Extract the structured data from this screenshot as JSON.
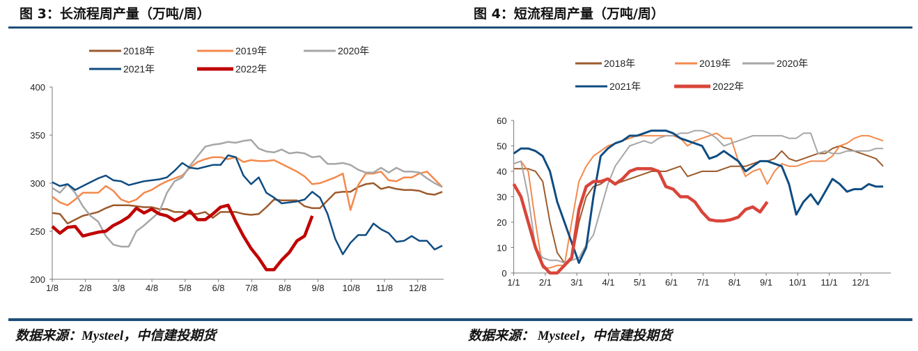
{
  "header": {
    "left_title": "图 3：长流程周产量（万吨/周）",
    "right_title": "图 4：短流程周产量（万吨/周）"
  },
  "footer": {
    "left_source": "数据来源：Mysteel，中信建投期货",
    "right_source": "数据来源： Mysteel，中信建投期货"
  },
  "colors": {
    "rule": "#1f4e79",
    "2018": "#9c5a2c",
    "2019": "#f4894b",
    "2020": "#a6a6a6",
    "2021": "#0f4c81",
    "2022_left": "#c00000",
    "2022_right": "#d9453a"
  },
  "chart_data": [
    {
      "type": "line",
      "title": "图 3：长流程周产量（万吨/周）",
      "x_start": "1/8",
      "x_frequency": "weekly",
      "xticks": [
        "1/8",
        "2/8",
        "3/8",
        "4/8",
        "5/8",
        "6/8",
        "7/8",
        "8/8",
        "9/8",
        "10/8",
        "11/8",
        "12/8"
      ],
      "ylim": [
        200,
        400
      ],
      "yticks": [
        200,
        250,
        300,
        350,
        400
      ],
      "grid": false,
      "legend": "top",
      "series": [
        {
          "name": "2018年",
          "color": "#9c5a2c",
          "values": [
            269,
            268,
            258,
            262,
            266,
            268,
            270,
            274,
            277,
            277,
            277,
            276,
            275,
            275,
            273,
            273,
            270,
            270,
            268,
            268,
            270,
            264,
            270,
            270,
            270,
            268,
            267,
            268,
            275,
            283,
            282,
            282,
            282,
            276,
            274,
            274,
            282,
            290,
            291,
            291,
            296,
            299,
            300,
            294,
            296,
            294,
            293,
            293,
            292,
            289,
            288,
            291
          ]
        },
        {
          "name": "2019年",
          "color": "#f4894b",
          "values": [
            286,
            280,
            277,
            283,
            290,
            290,
            290,
            297,
            292,
            283,
            280,
            283,
            290,
            293,
            298,
            302,
            305,
            308,
            316,
            322,
            325,
            327,
            327,
            325,
            327,
            322,
            324,
            323,
            323,
            324,
            320,
            316,
            312,
            307,
            299,
            300,
            303,
            306,
            310,
            272,
            298,
            310,
            310,
            312,
            303,
            302,
            306,
            306,
            310,
            312,
            304,
            296
          ]
        },
        {
          "name": "2020年",
          "color": "#a6a6a6",
          "values": [
            295,
            290,
            299,
            290,
            276,
            266,
            260,
            245,
            236,
            234,
            234,
            250,
            256,
            263,
            270,
            290,
            302,
            306,
            318,
            328,
            338,
            340,
            341,
            343,
            342,
            344,
            345,
            336,
            333,
            332,
            335,
            331,
            332,
            331,
            327,
            328,
            320,
            320,
            321,
            319,
            314,
            311,
            311,
            316,
            311,
            316,
            312,
            312,
            311,
            305,
            300,
            296
          ]
        },
        {
          "name": "2021年",
          "color": "#0f4c81",
          "values": [
            301,
            297,
            299,
            293,
            297,
            301,
            305,
            308,
            303,
            302,
            298,
            300,
            302,
            303,
            304,
            306,
            313,
            321,
            316,
            315,
            317,
            319,
            319,
            329,
            327,
            308,
            299,
            306,
            290,
            285,
            279,
            280,
            281,
            283,
            291,
            285,
            268,
            242,
            226,
            238,
            246,
            246,
            258,
            252,
            248,
            239,
            240,
            245,
            240,
            240,
            231,
            235
          ]
        },
        {
          "name": "2022年",
          "color": "#c00000",
          "values": [
            255,
            248,
            254,
            255,
            245,
            247,
            249,
            250,
            256,
            260,
            265,
            274,
            269,
            273,
            268,
            266,
            261,
            265,
            271,
            262,
            262,
            268,
            275,
            277,
            260,
            245,
            232,
            222,
            210,
            210,
            220,
            228,
            240,
            245,
            266
          ]
        }
      ]
    },
    {
      "type": "line",
      "title": "图 4：短流程周产量（万吨/周）",
      "x_start": "1/1",
      "x_frequency": "weekly",
      "xticks": [
        "1/1",
        "2/1",
        "3/1",
        "4/1",
        "5/1",
        "6/1",
        "7/1",
        "8/1",
        "9/1",
        "10/1",
        "11/1",
        "12/1"
      ],
      "ylim": [
        0,
        60
      ],
      "yticks": [
        0,
        10,
        20,
        30,
        40,
        50,
        60
      ],
      "grid": false,
      "legend": "top",
      "series": [
        {
          "name": "2018年",
          "color": "#9c5a2c",
          "values": [
            41,
            41,
            41,
            40,
            36,
            20,
            8,
            4,
            5,
            20,
            30,
            34,
            35,
            37,
            35,
            36,
            37,
            38,
            39,
            40,
            40,
            40,
            41,
            42,
            38,
            39,
            40,
            40,
            40,
            41,
            42,
            42,
            42,
            43,
            44,
            44,
            45,
            48,
            45,
            44,
            45,
            46,
            47,
            47,
            49,
            50,
            49,
            48,
            47,
            46,
            45,
            42
          ]
        },
        {
          "name": "2019年",
          "color": "#f4894b",
          "values": [
            43,
            44,
            40,
            20,
            2,
            2,
            3,
            3,
            20,
            36,
            42,
            46,
            48,
            50,
            51,
            52,
            53,
            54,
            54,
            54,
            54,
            54,
            54,
            53,
            50,
            52,
            53,
            54,
            55,
            53,
            53,
            44,
            38,
            40,
            41,
            35,
            40,
            43,
            42,
            42,
            43,
            44,
            44,
            44,
            46,
            50,
            51,
            53,
            54,
            54,
            53,
            52
          ]
        },
        {
          "name": "2020年",
          "color": "#a6a6a6",
          "values": [
            43,
            44,
            30,
            10,
            6,
            5,
            5,
            4,
            5,
            6,
            11,
            15,
            25,
            35,
            42,
            46,
            50,
            51,
            52,
            51,
            53,
            54,
            54,
            55,
            55,
            56,
            56,
            55,
            53,
            50,
            51,
            52,
            53,
            54,
            54,
            54,
            54,
            54,
            53,
            53,
            55,
            55,
            47,
            48,
            47,
            47,
            48,
            48,
            48,
            48,
            49,
            49
          ]
        },
        {
          "name": "2021年",
          "color": "#0f4c81",
          "values": [
            47,
            49,
            49,
            48,
            46,
            40,
            28,
            20,
            12,
            4,
            10,
            30,
            46,
            49,
            51,
            52,
            54,
            54,
            55,
            56,
            56,
            56,
            55,
            53,
            52,
            51,
            50,
            45,
            46,
            48,
            46,
            44,
            40,
            42,
            44,
            44,
            43,
            42,
            35,
            23,
            28,
            31,
            27,
            32,
            37,
            35,
            32,
            33,
            33,
            35,
            34,
            34
          ]
        },
        {
          "name": "2022年",
          "color": "#d9453a",
          "values": [
            35,
            30,
            20,
            10,
            3,
            0,
            0,
            3,
            6,
            25,
            34,
            36,
            36,
            37,
            35,
            37,
            40,
            41,
            41,
            41,
            40,
            34,
            33,
            30,
            30,
            28,
            24,
            21,
            20.5,
            20.5,
            21,
            22,
            25,
            26,
            24,
            28
          ]
        }
      ]
    }
  ]
}
